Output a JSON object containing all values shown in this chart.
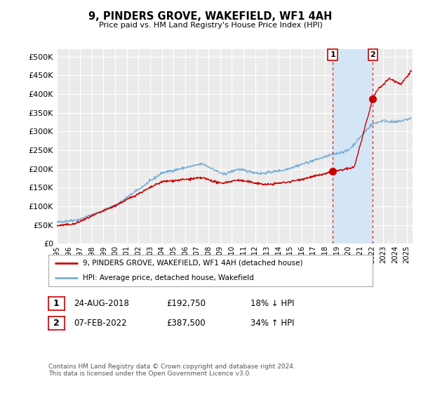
{
  "title": "9, PINDERS GROVE, WAKEFIELD, WF1 4AH",
  "subtitle": "Price paid vs. HM Land Registry's House Price Index (HPI)",
  "ytick_values": [
    0,
    50000,
    100000,
    150000,
    200000,
    250000,
    300000,
    350000,
    400000,
    450000,
    500000
  ],
  "ylim": [
    0,
    520000
  ],
  "xlim_start": 1995.0,
  "xlim_end": 2025.5,
  "hpi_color": "#7bafd4",
  "price_color": "#cc0000",
  "shade_color": "#d0e4f7",
  "marker1_x": 2018.65,
  "marker1_y": 192750,
  "marker2_x": 2022.1,
  "marker2_y": 387500,
  "legend_entry1": "9, PINDERS GROVE, WAKEFIELD, WF1 4AH (detached house)",
  "legend_entry2": "HPI: Average price, detached house, Wakefield",
  "table_row1": [
    "1",
    "24-AUG-2018",
    "£192,750",
    "18% ↓ HPI"
  ],
  "table_row2": [
    "2",
    "07-FEB-2022",
    "£387,500",
    "34% ↑ HPI"
  ],
  "footnote": "Contains HM Land Registry data © Crown copyright and database right 2024.\nThis data is licensed under the Open Government Licence v3.0.",
  "background_color": "#ffffff",
  "plot_bg_color": "#ebebeb",
  "grid_color": "#ffffff"
}
